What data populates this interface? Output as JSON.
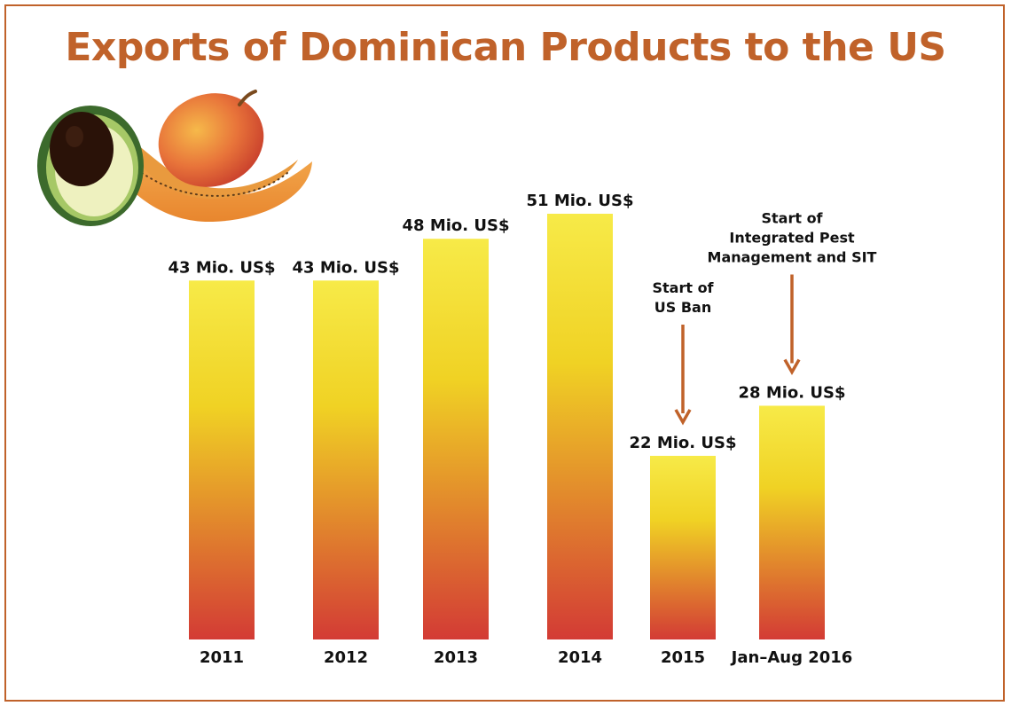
{
  "colors": {
    "accent": "#c0622a",
    "bar_top": "#f7ea48",
    "bar_mid": "#f0d224",
    "bar_bottom": "#d33b35",
    "arrow": "#c0622a"
  },
  "chart_data": {
    "type": "bar",
    "title": "Exports of Dominican Products to the US",
    "categories": [
      "2011",
      "2012",
      "2013",
      "2014",
      "2015",
      "Jan–Aug 2016"
    ],
    "values": [
      43,
      43,
      48,
      51,
      22,
      28
    ],
    "data_labels": [
      "43 Mio. US$",
      "43 Mio. US$",
      "48 Mio. US$",
      "51 Mio. US$",
      "22 Mio. US$",
      "28 Mio. US$"
    ],
    "unit": "Mio. US$",
    "xlabel": "",
    "ylabel": "",
    "ylim": [
      0,
      51
    ],
    "grid": false,
    "annotations": [
      {
        "category_index": 4,
        "lines": [
          "Start of",
          "US Ban"
        ]
      },
      {
        "category_index": 5,
        "lines": [
          "Start of",
          "Integrated Pest",
          "Management and SIT"
        ]
      }
    ]
  }
}
